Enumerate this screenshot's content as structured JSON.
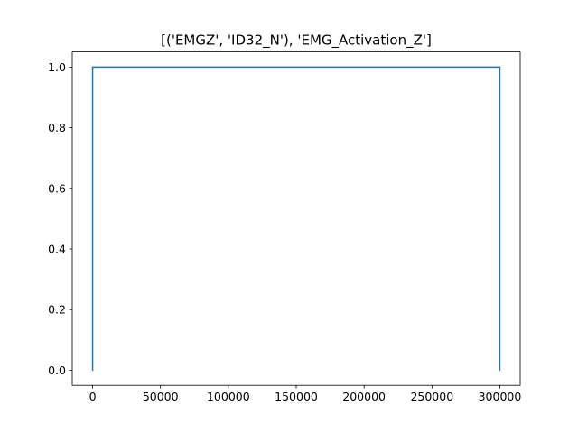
{
  "chart_data": {
    "type": "line",
    "title": "[('EMGZ', 'ID32_N'), 'EMG_Activation_Z']",
    "xlabel": "",
    "ylabel": "",
    "xlim": [
      -15000,
      315000
    ],
    "ylim": [
      -0.05,
      1.05
    ],
    "x_ticks": [
      0,
      50000,
      100000,
      150000,
      200000,
      250000,
      300000
    ],
    "x_tick_labels": [
      "0",
      "50000",
      "100000",
      "150000",
      "200000",
      "250000",
      "300000"
    ],
    "y_ticks": [
      0.0,
      0.2,
      0.4,
      0.6,
      0.8,
      1.0
    ],
    "y_tick_labels": [
      "0.0",
      "0.2",
      "0.4",
      "0.6",
      "0.8",
      "1.0"
    ],
    "grid": false,
    "series": [
      {
        "color": "#1f77b4",
        "x": [
          0,
          0,
          300000,
          300000
        ],
        "y": [
          0,
          1,
          1,
          0
        ]
      }
    ]
  }
}
